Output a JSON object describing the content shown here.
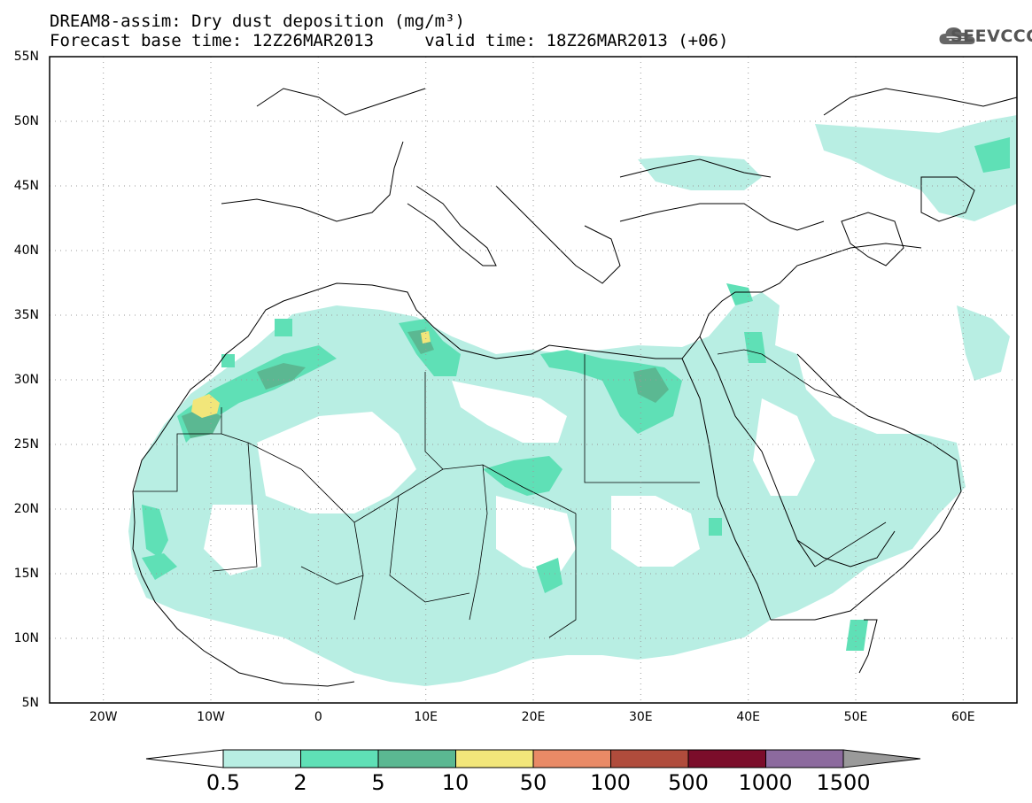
{
  "title": {
    "line1": "DREAM8-assim: Dry dust deposition (mg/m³)",
    "line2": "Forecast base time: 12Z26MAR2013     valid time: 18Z26MAR2013 (+06)"
  },
  "logo": {
    "text": "SEEVCCC",
    "icon": "cloud-icon"
  },
  "map": {
    "lon_range": [
      -25,
      65
    ],
    "lat_range": [
      5,
      55
    ],
    "lat_labels": [
      "55N",
      "50N",
      "45N",
      "40N",
      "35N",
      "30N",
      "25N",
      "20N",
      "15N",
      "10N",
      "5N"
    ],
    "lon_labels": [
      "20W",
      "10W",
      "0",
      "10E",
      "20E",
      "30E",
      "40E",
      "50E",
      "60E"
    ],
    "grid": "dotted",
    "background": "#ffffff",
    "coastline_color": "#000000"
  },
  "colorbar": {
    "labels": [
      "0.5",
      "2",
      "5",
      "10",
      "50",
      "100",
      "500",
      "1000",
      "1500"
    ],
    "colors": [
      "#ffffff",
      "#b8eee3",
      "#5fe0b6",
      "#5bb892",
      "#f2e67a",
      "#e98a66",
      "#b04c3c",
      "#7b0d2a",
      "#8c6a9e",
      "#9a9a9a"
    ],
    "extend": "both"
  }
}
